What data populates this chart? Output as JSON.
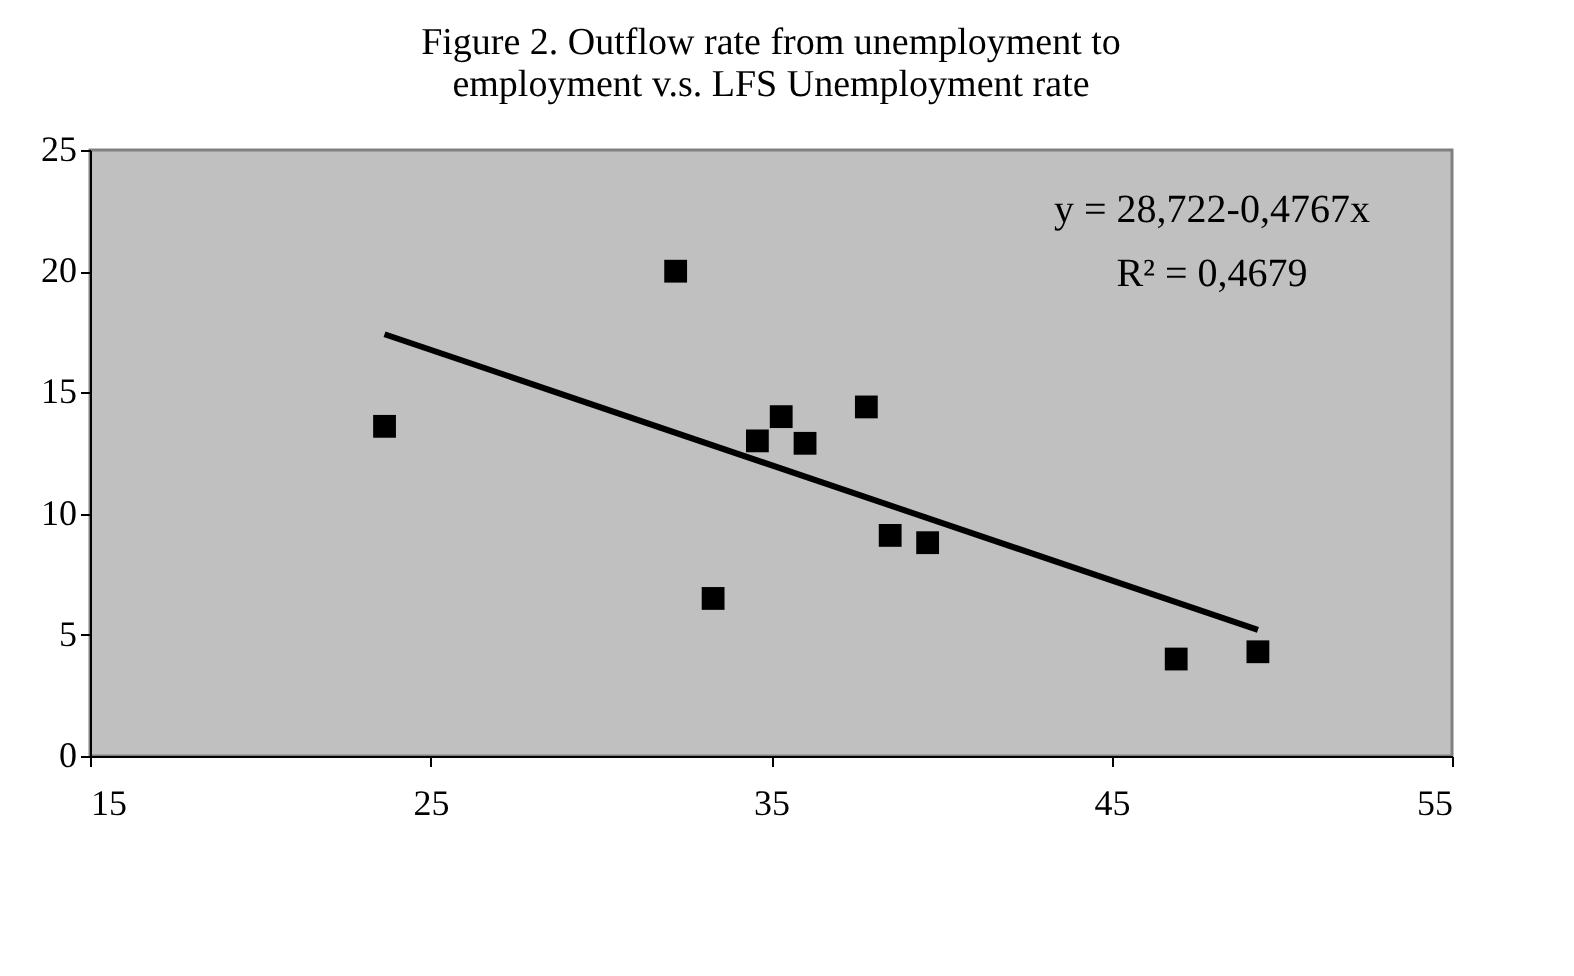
{
  "chart_data": {
    "type": "scatter",
    "title": [
      "Figure 2. Outflow rate from unemployment to",
      "employment v.s. LFS Unemployment rate"
    ],
    "grid": false,
    "xlim": [
      15,
      55
    ],
    "xticks": [
      15,
      25,
      35,
      45,
      55
    ],
    "ylim": [
      0,
      25
    ],
    "yticks": [
      0,
      5,
      10,
      15,
      20,
      25
    ],
    "series": [
      {
        "color": "#000000",
        "marker": "square",
        "x": [
          23.65,
          32.2,
          33.3,
          34.6,
          35.3,
          36.0,
          37.8,
          38.5,
          39.6,
          46.9,
          49.3
        ],
        "values": [
          13.6,
          20.0,
          6.5,
          13.0,
          14.0,
          12.9,
          14.4,
          9.1,
          8.8,
          4.0,
          4.3
        ]
      },
      {
        "type": "line",
        "color": "#000000",
        "x": [
          23.65,
          49.3
        ],
        "values": [
          17.4,
          5.2
        ]
      }
    ],
    "annotations": [
      "y = 28,722-0,4767x",
      "R² = 0,4679"
    ]
  }
}
